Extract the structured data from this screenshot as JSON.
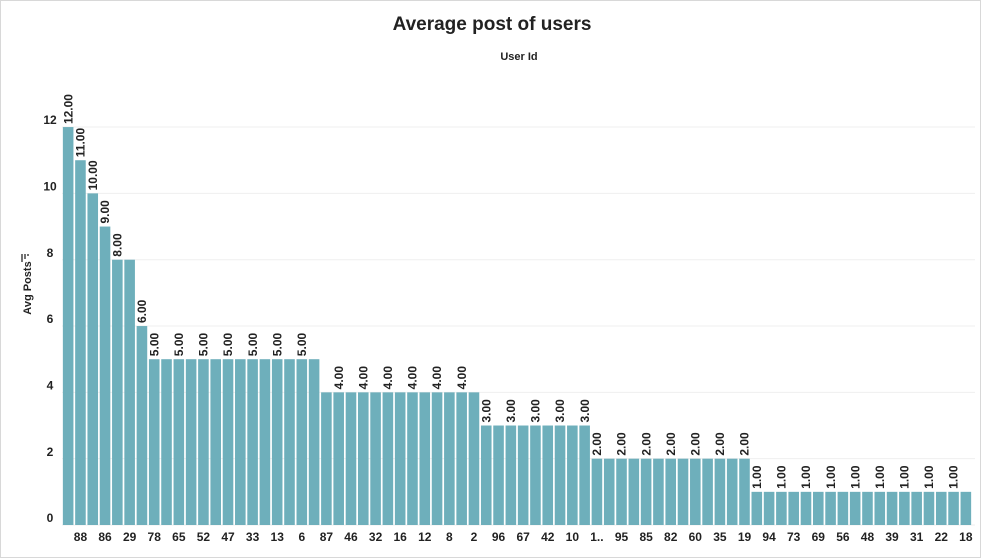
{
  "chart_data": {
    "type": "bar",
    "title": "Average post of users",
    "subtitle": "User Id",
    "y_label": "Avg Posts",
    "categories": [
      null,
      "88",
      null,
      "86",
      null,
      "29",
      null,
      "78",
      null,
      "65",
      null,
      "52",
      null,
      "47",
      null,
      "33",
      null,
      "13",
      null,
      "6",
      null,
      "87",
      null,
      "46",
      null,
      "32",
      null,
      "16",
      null,
      "12",
      null,
      "8",
      null,
      "2",
      null,
      "96",
      null,
      "67",
      null,
      "42",
      null,
      "10",
      null,
      "1..",
      null,
      "95",
      null,
      "85",
      null,
      "82",
      null,
      "60",
      null,
      "35",
      null,
      "19",
      null,
      "94",
      null,
      "73",
      null,
      "69",
      null,
      "56",
      null,
      "48",
      null,
      "39",
      null,
      "31",
      null,
      "22",
      null,
      "18"
    ],
    "values": [
      12,
      11,
      10,
      9,
      8,
      8,
      6,
      5,
      5,
      5,
      5,
      5,
      5,
      5,
      5,
      5,
      5,
      5,
      5,
      5,
      5,
      4,
      4,
      4,
      4,
      4,
      4,
      4,
      4,
      4,
      4,
      4,
      4,
      4,
      3,
      3,
      3,
      3,
      3,
      3,
      3,
      3,
      3,
      2,
      2,
      2,
      2,
      2,
      2,
      2,
      2,
      2,
      2,
      2,
      2,
      2,
      1,
      1,
      1,
      1,
      1,
      1,
      1,
      1,
      1,
      1,
      1,
      1,
      1,
      1,
      1,
      1,
      1,
      1
    ],
    "value_labels": [
      "12.00",
      "11.00",
      "10.00",
      "9.00",
      "8.00",
      null,
      "6.00",
      "5.00",
      null,
      "5.00",
      null,
      "5.00",
      null,
      "5.00",
      null,
      "5.00",
      null,
      "5.00",
      null,
      "5.00",
      null,
      null,
      "4.00",
      null,
      "4.00",
      null,
      "4.00",
      null,
      "4.00",
      null,
      "4.00",
      null,
      "4.00",
      null,
      "3.00",
      null,
      "3.00",
      null,
      "3.00",
      null,
      "3.00",
      null,
      "3.00",
      "2.00",
      null,
      "2.00",
      null,
      "2.00",
      null,
      "2.00",
      null,
      "2.00",
      null,
      "2.00",
      null,
      "2.00",
      "1.00",
      null,
      "1.00",
      null,
      "1.00",
      null,
      "1.00",
      null,
      "1.00",
      null,
      "1.00",
      null,
      "1.00",
      null,
      "1.00",
      null,
      "1.00",
      null
    ],
    "color": "#6eafbb",
    "ylim": [
      0,
      13.6
    ],
    "yticks": [
      0,
      2,
      4,
      6,
      8,
      10,
      12
    ],
    "grid": true
  }
}
